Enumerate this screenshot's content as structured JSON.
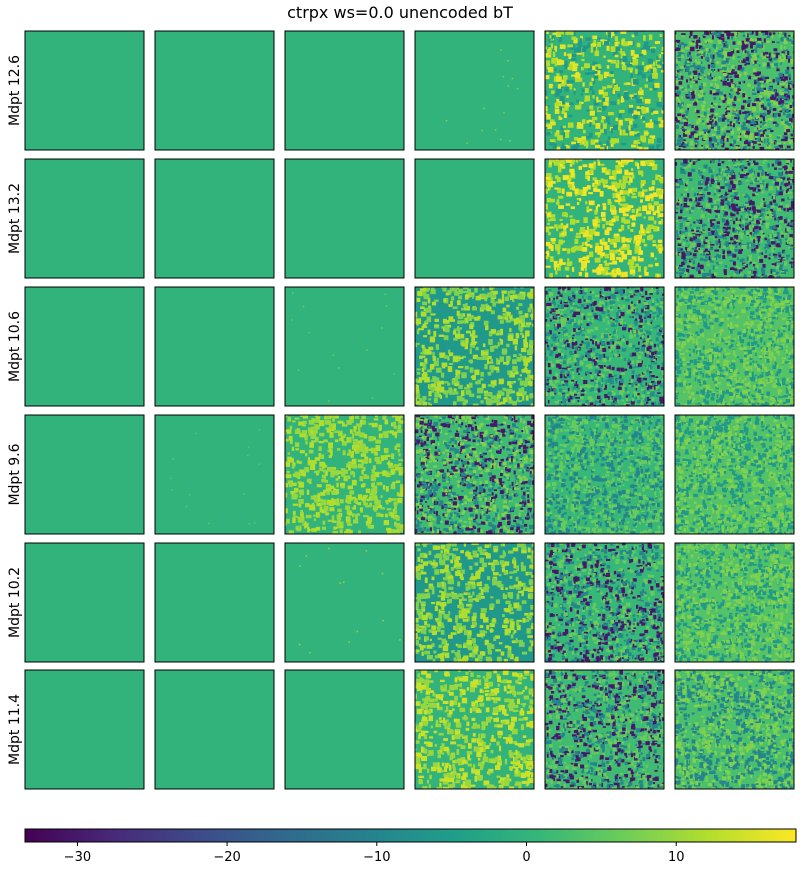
{
  "chart_data": {
    "type": "heatmap",
    "title": "ctrpx ws=0.0 unencoded bT",
    "colormap": "viridis",
    "row_labels": [
      "Mdpt 12.6",
      "Mdpt 13.2",
      "Mdpt 10.6",
      "Mdpt 9.6",
      "Mdpt 10.2",
      "Mdpt 11.4"
    ],
    "n_columns": 6,
    "colorbar": {
      "range": [
        -33.5,
        18.0
      ],
      "ticks": [
        -30,
        -20,
        -10,
        0,
        10
      ],
      "tick_labels": [
        "−30",
        "−20",
        "−10",
        "0",
        "10"
      ],
      "orientation": "horizontal",
      "placement": "bottom"
    },
    "panels": [
      {
        "row": 0,
        "col": 0,
        "pattern": "uniform",
        "base": 0,
        "levels": []
      },
      {
        "row": 0,
        "col": 1,
        "pattern": "uniform",
        "base": 0,
        "levels": []
      },
      {
        "row": 0,
        "col": 2,
        "pattern": "uniform",
        "base": 0,
        "levels": []
      },
      {
        "row": 0,
        "col": 3,
        "pattern": "sparse",
        "base": 0,
        "levels": [
          10
        ]
      },
      {
        "row": 0,
        "col": 4,
        "pattern": "blobs",
        "base": 0,
        "levels": [
          -6,
          12,
          16
        ]
      },
      {
        "row": 0,
        "col": 5,
        "pattern": "noise",
        "base": 3,
        "levels": [
          -30,
          -10,
          8
        ]
      },
      {
        "row": 1,
        "col": 0,
        "pattern": "uniform",
        "base": 0,
        "levels": []
      },
      {
        "row": 1,
        "col": 1,
        "pattern": "uniform",
        "base": 0,
        "levels": []
      },
      {
        "row": 1,
        "col": 2,
        "pattern": "uniform",
        "base": 0,
        "levels": []
      },
      {
        "row": 1,
        "col": 3,
        "pattern": "uniform",
        "base": 0,
        "levels": []
      },
      {
        "row": 1,
        "col": 4,
        "pattern": "blobs",
        "base": 0,
        "levels": [
          12,
          17
        ]
      },
      {
        "row": 1,
        "col": 5,
        "pattern": "noise",
        "base": 2,
        "levels": [
          -30,
          -10,
          6
        ]
      },
      {
        "row": 2,
        "col": 0,
        "pattern": "uniform",
        "base": 0,
        "levels": []
      },
      {
        "row": 2,
        "col": 1,
        "pattern": "uniform",
        "base": 0,
        "levels": []
      },
      {
        "row": 2,
        "col": 2,
        "pattern": "sparse",
        "base": 0,
        "levels": [
          8
        ]
      },
      {
        "row": 2,
        "col": 3,
        "pattern": "blobs",
        "base": -6,
        "levels": [
          8,
          12
        ]
      },
      {
        "row": 2,
        "col": 4,
        "pattern": "noise",
        "base": 1,
        "levels": [
          -30,
          -8,
          6
        ]
      },
      {
        "row": 2,
        "col": 5,
        "pattern": "noise",
        "base": 4,
        "levels": [
          -6,
          8
        ]
      },
      {
        "row": 3,
        "col": 0,
        "pattern": "uniform",
        "base": 0,
        "levels": []
      },
      {
        "row": 3,
        "col": 1,
        "pattern": "sparse",
        "base": 0,
        "levels": [
          6
        ]
      },
      {
        "row": 3,
        "col": 2,
        "pattern": "blobs",
        "base": 0,
        "levels": [
          10,
          12
        ]
      },
      {
        "row": 3,
        "col": 3,
        "pattern": "noise",
        "base": 2,
        "levels": [
          -30,
          -10,
          8
        ]
      },
      {
        "row": 3,
        "col": 4,
        "pattern": "noise",
        "base": 1,
        "levels": [
          -10,
          6
        ]
      },
      {
        "row": 3,
        "col": 5,
        "pattern": "noise",
        "base": 4,
        "levels": [
          -6,
          8
        ]
      },
      {
        "row": 4,
        "col": 0,
        "pattern": "uniform",
        "base": 0,
        "levels": []
      },
      {
        "row": 4,
        "col": 1,
        "pattern": "uniform",
        "base": 0,
        "levels": []
      },
      {
        "row": 4,
        "col": 2,
        "pattern": "sparse",
        "base": 0,
        "levels": [
          12
        ]
      },
      {
        "row": 4,
        "col": 3,
        "pattern": "blobs",
        "base": -6,
        "levels": [
          8,
          12
        ]
      },
      {
        "row": 4,
        "col": 4,
        "pattern": "noise",
        "base": 1,
        "levels": [
          -30,
          -10,
          6
        ]
      },
      {
        "row": 4,
        "col": 5,
        "pattern": "noise",
        "base": 4,
        "levels": [
          -6,
          8
        ]
      },
      {
        "row": 5,
        "col": 0,
        "pattern": "uniform",
        "base": 0,
        "levels": []
      },
      {
        "row": 5,
        "col": 1,
        "pattern": "uniform",
        "base": 0,
        "levels": []
      },
      {
        "row": 5,
        "col": 2,
        "pattern": "uniform",
        "base": 0,
        "levels": []
      },
      {
        "row": 5,
        "col": 3,
        "pattern": "blobs",
        "base": 0,
        "levels": [
          10,
          14
        ]
      },
      {
        "row": 5,
        "col": 4,
        "pattern": "noise",
        "base": 2,
        "levels": [
          -30,
          -10,
          6
        ]
      },
      {
        "row": 5,
        "col": 5,
        "pattern": "noise",
        "base": 3,
        "levels": [
          -10,
          8
        ]
      }
    ]
  }
}
